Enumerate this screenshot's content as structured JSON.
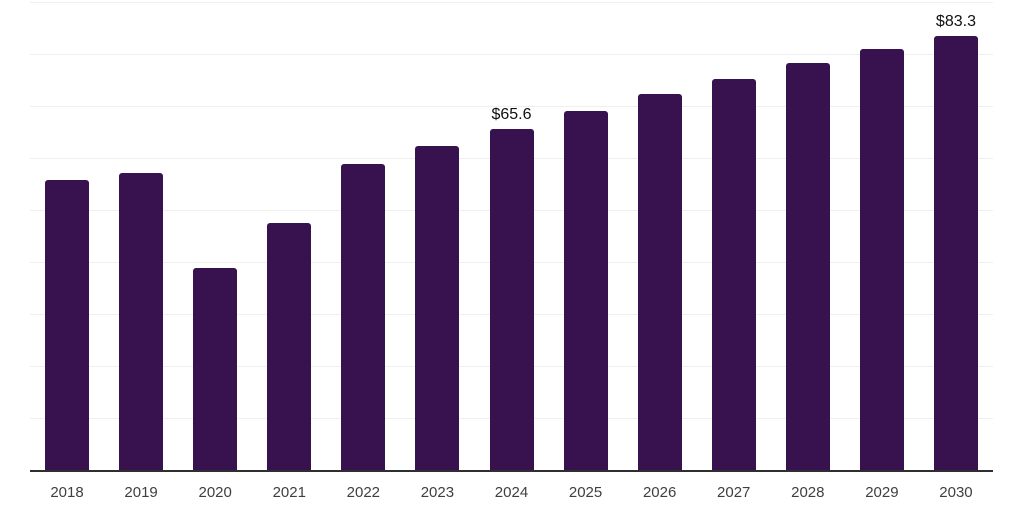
{
  "chart_data": {
    "type": "bar",
    "title": "",
    "xlabel": "",
    "ylabel": "",
    "categories": [
      "2018",
      "2019",
      "2020",
      "2021",
      "2022",
      "2023",
      "2024",
      "2025",
      "2026",
      "2027",
      "2028",
      "2029",
      "2030"
    ],
    "values": [
      55.8,
      57.0,
      38.8,
      47.4,
      58.7,
      62.3,
      65.6,
      68.9,
      72.3,
      75.1,
      78.1,
      80.8,
      83.3
    ],
    "data_labels": {
      "2024": "$65.6",
      "2030": "$83.3"
    },
    "ylim": [
      0,
      90
    ],
    "grid_step": 10,
    "grid": "horizontal-only",
    "legend": "none",
    "colors": {
      "bar": "#38114f",
      "value_label": "#111111",
      "tick_label": "#3f3f3f",
      "axis_line": "#2f2f2f",
      "gridline": "#efefef",
      "background": "#ffffff"
    }
  }
}
